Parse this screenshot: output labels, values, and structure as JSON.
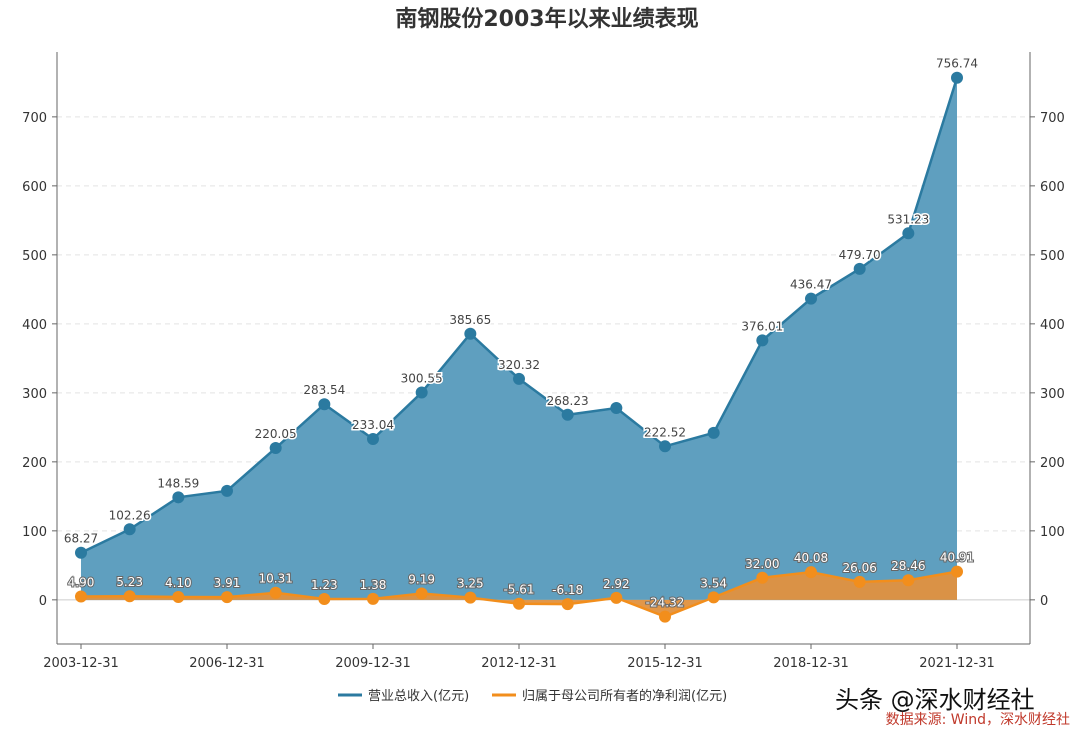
{
  "chart_data": {
    "type": "area",
    "title": "南钢股份2003年以来业绩表现",
    "x": [
      "2003-12-31",
      "2004-12-31",
      "2005-12-31",
      "2006-12-31",
      "2007-12-31",
      "2008-12-31",
      "2009-12-31",
      "2010-12-31",
      "2011-12-31",
      "2012-12-31",
      "2013-12-31",
      "2014-12-31",
      "2015-12-31",
      "2016-12-31",
      "2017-12-31",
      "2018-12-31",
      "2019-12-31",
      "2020-12-31",
      "2021-12-31"
    ],
    "xtick_labels": [
      "2003-12-31",
      "2006-12-31",
      "2009-12-31",
      "2012-12-31",
      "2015-12-31",
      "2018-12-31",
      "2021-12-31"
    ],
    "yticks": [
      0,
      100,
      200,
      300,
      400,
      500,
      600,
      700
    ],
    "ylim": [
      -64,
      794
    ],
    "grid": true,
    "legend_position": "bottom",
    "series": [
      {
        "name": "营业总收入(亿元)",
        "color": "#2b7aa0",
        "fill": "#5f9fbf",
        "values": [
          68.27,
          102.26,
          148.59,
          158,
          220.05,
          283.54,
          233.04,
          300.55,
          385.65,
          320.32,
          268.23,
          278,
          222.52,
          242,
          376.01,
          436.47,
          479.7,
          531.23,
          756.74
        ],
        "labels": [
          "68.27",
          "102.26",
          "148.59",
          null,
          "220.05",
          "283.54",
          "233.04",
          "300.55",
          "385.65",
          "320.32",
          "268.23",
          null,
          "222.52",
          null,
          "376.01",
          "436.47",
          "479.70",
          "531.23",
          "756.74"
        ]
      },
      {
        "name": "归属于母公司所有者的净利润(亿元)",
        "color": "#f28e1c",
        "fill": "#e0913f",
        "values": [
          4.9,
          5.23,
          4.1,
          3.91,
          10.31,
          1.23,
          1.38,
          9.19,
          3.25,
          -5.61,
          -6.18,
          2.92,
          -24.32,
          3.54,
          32.0,
          40.08,
          26.06,
          28.46,
          40.91
        ],
        "labels": [
          "4.90",
          "5.23",
          "4.10",
          "3.91",
          "10.31",
          "1.23",
          "1.38",
          "9.19",
          "3.25",
          "-5.61",
          "-6.18",
          "2.92",
          "-24.32",
          "3.54",
          "32.00",
          "40.08",
          "26.06",
          "28.46",
          "40.91"
        ]
      }
    ]
  },
  "watermark": "头条 @深水财经社",
  "source": "数据来源: Wind，深水财经社"
}
